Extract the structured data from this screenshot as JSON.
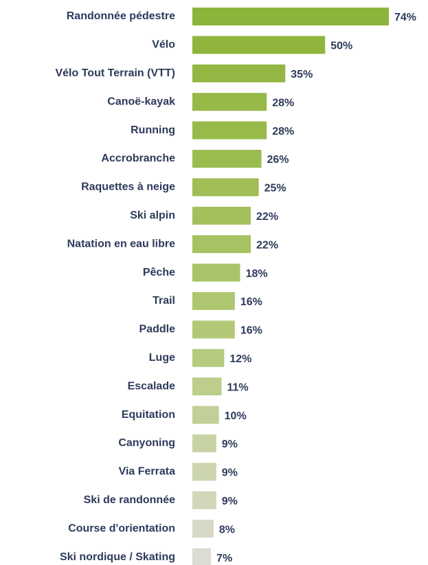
{
  "chart_data": {
    "type": "bar",
    "orientation": "horizontal",
    "categories": [
      "Randonnée pédestre",
      "Vélo",
      "Vélo Tout Terrain (VTT)",
      "Canoë-kayak",
      "Running",
      "Accrobranche",
      "Raquettes à neige",
      "Ski alpin",
      "Natation en eau libre",
      "Pêche",
      "Trail",
      "Paddle",
      "Luge",
      "Escalade",
      "Equitation",
      "Canyoning",
      "Via Ferrata",
      "Ski de randonnée",
      "Course d'orientation",
      "Ski nordique / Skating"
    ],
    "values": [
      74,
      50,
      35,
      28,
      28,
      26,
      25,
      22,
      22,
      18,
      16,
      16,
      12,
      11,
      10,
      9,
      9,
      9,
      8,
      7
    ],
    "value_labels": [
      "74%",
      "50%",
      "35%",
      "28%",
      "28%",
      "26%",
      "25%",
      "22%",
      "22%",
      "18%",
      "16%",
      "16%",
      "12%",
      "11%",
      "10%",
      "9%",
      "9%",
      "9%",
      "8%",
      "7%"
    ],
    "colors": [
      "#8cb43a",
      "#8fb53d",
      "#93b742",
      "#96b947",
      "#98ba4a",
      "#9bbc4f",
      "#9fbe55",
      "#a3c05c",
      "#a6c262",
      "#aac469",
      "#aec670",
      "#b2c877",
      "#b6ca80",
      "#bccd8c",
      "#c2d098",
      "#c7d3a4",
      "#ccd5ae",
      "#d1d7b9",
      "#d6d9c6",
      "#dcdcd4"
    ]
  }
}
